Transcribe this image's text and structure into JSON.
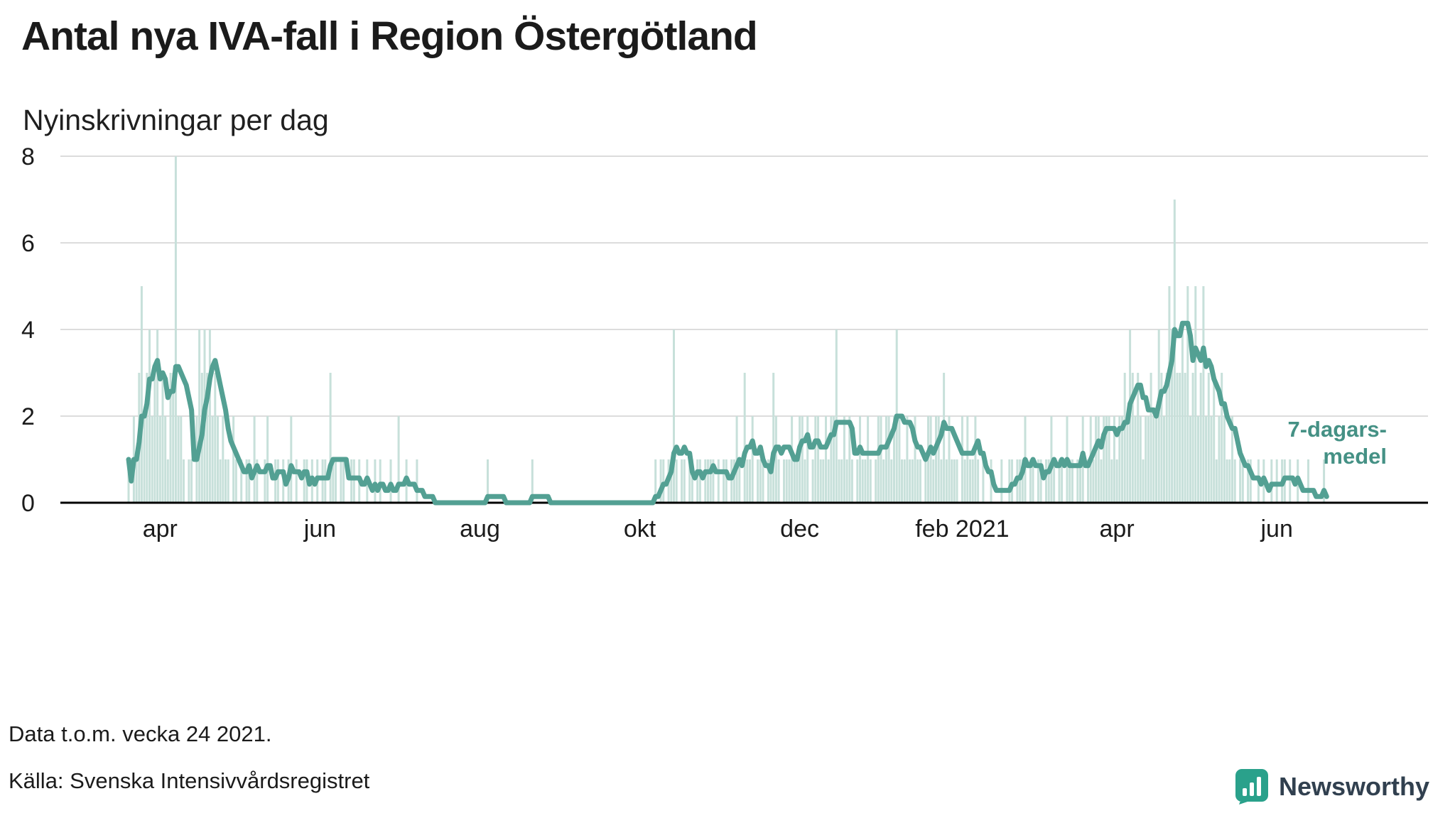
{
  "header": {
    "title": "Antal nya IVA-fall i Region Östergötland",
    "subtitle": "Nyinskrivningar per dag"
  },
  "chart_data": {
    "type": "bar",
    "title": "Antal nya IVA-fall i Region Östergötland",
    "subtitle": "Nyinskrivningar per dag",
    "xlabel": "",
    "ylabel": "",
    "ylim": [
      0,
      8
    ],
    "yticks": [
      0,
      2,
      4,
      6,
      8
    ],
    "grid": "horizontal",
    "xtick_labels": [
      "apr",
      "jun",
      "aug",
      "okt",
      "dec",
      "feb 2021",
      "apr",
      "jun"
    ],
    "xtick_positions": [
      12,
      73,
      134,
      195,
      256,
      318,
      377,
      438
    ],
    "x_unit": "day",
    "annotation": {
      "line1": "7-dagars-",
      "line2": "medel"
    },
    "colors": {
      "bars": "#c7e0da",
      "line": "#53a093",
      "annotation": "#459185",
      "grid": "#dcdcdc",
      "axis": "#000000",
      "text": "#1b1b1b"
    },
    "series": [
      {
        "name": "Nyinskrivningar per dag",
        "type": "bar",
        "values": [
          1,
          0,
          2,
          1,
          3,
          5,
          2,
          3,
          4,
          2,
          3,
          4,
          2,
          3,
          2,
          1,
          3,
          3,
          8,
          2,
          2,
          1,
          0,
          1,
          1,
          0,
          2,
          4,
          3,
          4,
          3,
          4,
          2,
          3,
          2,
          1,
          2,
          1,
          1,
          0,
          2,
          1,
          0,
          1,
          0,
          1,
          1,
          0,
          2,
          1,
          0,
          0,
          1,
          2,
          0,
          0,
          1,
          1,
          0,
          1,
          0,
          1,
          2,
          0,
          1,
          0,
          0,
          1,
          1,
          0,
          1,
          0,
          1,
          0,
          1,
          1,
          0,
          3,
          1,
          1,
          0,
          1,
          1,
          0,
          0,
          1,
          1,
          0,
          1,
          0,
          0,
          1,
          0,
          0,
          1,
          0,
          1,
          0,
          0,
          0,
          1,
          0,
          0,
          2,
          0,
          0,
          1,
          0,
          0,
          0,
          1,
          0,
          0,
          0,
          0,
          0,
          0,
          0,
          0,
          0,
          0,
          0,
          0,
          0,
          0,
          0,
          0,
          0,
          0,
          0,
          0,
          0,
          0,
          0,
          0,
          0,
          0,
          1,
          0,
          0,
          0,
          0,
          0,
          0,
          0,
          0,
          0,
          0,
          0,
          0,
          0,
          0,
          0,
          0,
          1,
          0,
          0,
          0,
          0,
          0,
          0,
          0,
          0,
          0,
          0,
          0,
          0,
          0,
          0,
          0,
          0,
          0,
          0,
          0,
          0,
          0,
          0,
          0,
          0,
          0,
          0,
          0,
          0,
          0,
          0,
          0,
          0,
          0,
          0,
          0,
          0,
          0,
          0,
          0,
          0,
          0,
          0,
          0,
          0,
          0,
          0,
          1,
          0,
          1,
          1,
          0,
          1,
          1,
          4,
          1,
          0,
          1,
          1,
          0,
          1,
          1,
          0,
          1,
          1,
          0,
          1,
          1,
          1,
          1,
          0,
          1,
          0,
          1,
          1,
          0,
          1,
          1,
          2,
          1,
          0,
          3,
          1,
          1,
          2,
          0,
          1,
          1,
          1,
          0,
          1,
          1,
          3,
          2,
          1,
          0,
          1,
          1,
          1,
          2,
          1,
          1,
          2,
          2,
          1,
          2,
          0,
          1,
          2,
          2,
          1,
          1,
          2,
          1,
          2,
          2,
          4,
          1,
          1,
          2,
          1,
          2,
          1,
          0,
          1,
          2,
          1,
          1,
          2,
          1,
          0,
          1,
          2,
          2,
          1,
          2,
          2,
          1,
          2,
          4,
          2,
          1,
          1,
          2,
          1,
          1,
          2,
          1,
          1,
          0,
          1,
          2,
          2,
          1,
          2,
          2,
          1,
          3,
          1,
          2,
          1,
          1,
          1,
          0,
          2,
          1,
          2,
          1,
          1,
          2,
          1,
          0,
          1,
          0,
          0,
          1,
          0,
          0,
          0,
          1,
          0,
          0,
          1,
          1,
          0,
          1,
          1,
          1,
          2,
          0,
          1,
          1,
          0,
          1,
          1,
          0,
          1,
          1,
          2,
          1,
          0,
          1,
          1,
          0,
          2,
          1,
          1,
          0,
          1,
          1,
          2,
          0,
          1,
          2,
          1,
          2,
          2,
          1,
          2,
          2,
          2,
          1,
          2,
          1,
          2,
          2,
          3,
          2,
          4,
          3,
          2,
          3,
          2,
          1,
          2,
          2,
          3,
          2,
          2,
          4,
          3,
          2,
          3,
          5,
          4,
          7,
          3,
          3,
          4,
          3,
          5,
          2,
          3,
          5,
          2,
          3,
          5,
          2,
          3,
          2,
          3,
          1,
          2,
          3,
          2,
          1,
          1,
          2,
          1,
          0,
          1,
          1,
          0,
          1,
          1,
          0,
          0,
          1,
          0,
          1,
          0,
          0,
          1,
          0,
          1,
          0,
          1,
          1,
          0,
          1,
          0,
          0,
          1,
          0,
          0,
          0,
          1,
          0,
          0,
          0,
          0,
          0,
          1,
          0
        ]
      },
      {
        "name": "7-dagars-medel",
        "type": "line",
        "definition": "7-day rolling mean of the daily bar values"
      }
    ]
  },
  "footer": {
    "note": "Data t.o.m. vecka 24 2021.",
    "source": "Källa: Svenska Intensivvårdsregistret"
  },
  "branding": {
    "name": "Newsworthy",
    "color": "#2aa18b",
    "text_color": "#31404f"
  }
}
